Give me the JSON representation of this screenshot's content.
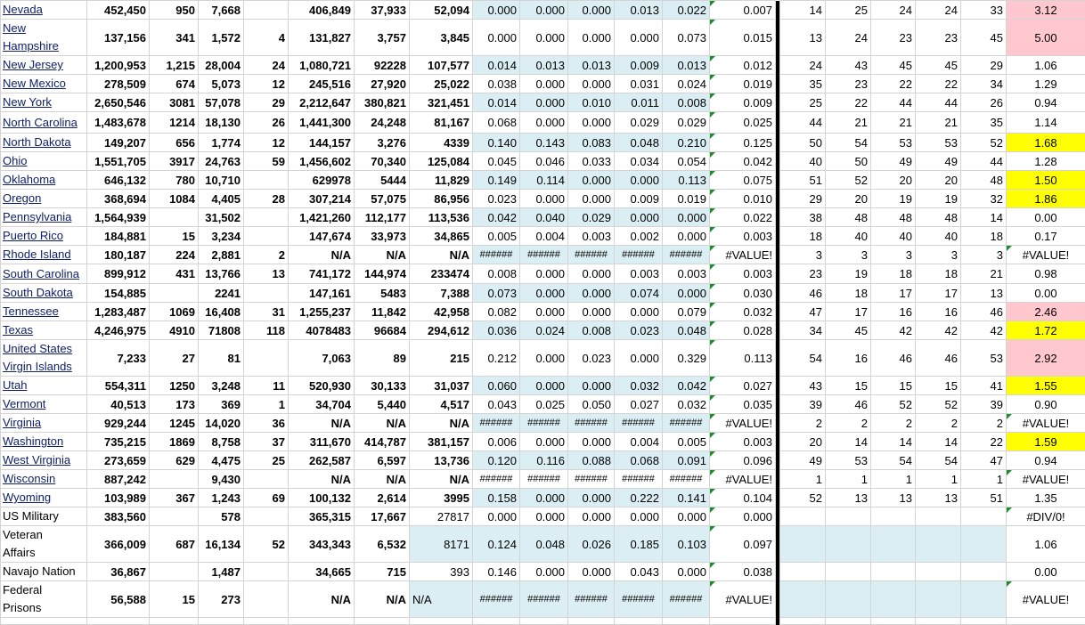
{
  "colors": {
    "shade": "#daeef3",
    "pink": "#ffc7ce",
    "yellow": "#ffff00",
    "separator": "#000000",
    "error_marker": "#1e8c2e"
  },
  "rows": [
    {
      "name": "Nevada",
      "vals": [
        "452,450",
        "950",
        "7,668",
        "",
        "406,849",
        "37,933",
        "52,094"
      ],
      "rates": [
        "0.000",
        "0.000",
        "0.000",
        "0.013",
        "0.022"
      ],
      "avg": "0.007",
      "ranks": [
        "14",
        "25",
        "24",
        "24",
        "33"
      ],
      "ratio": "3.12",
      "fill": "pink"
    },
    {
      "name": "New Hampshire",
      "vals": [
        "137,156",
        "341",
        "1,572",
        "4",
        "131,827",
        "3,757",
        "3,845"
      ],
      "rates": [
        "0.000",
        "0.000",
        "0.000",
        "0.000",
        "0.073"
      ],
      "avg": "0.015",
      "ranks": [
        "13",
        "24",
        "23",
        "23",
        "45"
      ],
      "ratio": "5.00",
      "fill": "pink"
    },
    {
      "name": "New Jersey",
      "vals": [
        "1,200,953",
        "1,215",
        "28,004",
        "24",
        "1,080,721",
        "92228",
        "107,577"
      ],
      "rates": [
        "0.014",
        "0.013",
        "0.013",
        "0.009",
        "0.013"
      ],
      "avg": "0.012",
      "ranks": [
        "24",
        "43",
        "45",
        "45",
        "29"
      ],
      "ratio": "1.06",
      "fill": ""
    },
    {
      "name": "New Mexico",
      "vals": [
        "278,509",
        "674",
        "5,073",
        "12",
        "245,516",
        "27,920",
        "25,022"
      ],
      "rates": [
        "0.038",
        "0.000",
        "0.000",
        "0.031",
        "0.024"
      ],
      "avg": "0.019",
      "ranks": [
        "35",
        "23",
        "22",
        "22",
        "34"
      ],
      "ratio": "1.29",
      "fill": ""
    },
    {
      "name": "New York",
      "vals": [
        "2,650,546",
        "3081",
        "57,078",
        "29",
        "2,212,647",
        "380,821",
        "321,451"
      ],
      "rates": [
        "0.014",
        "0.000",
        "0.010",
        "0.011",
        "0.008"
      ],
      "avg": "0.009",
      "ranks": [
        "25",
        "22",
        "44",
        "44",
        "26"
      ],
      "ratio": "0.94",
      "fill": ""
    },
    {
      "name": "North Carolina",
      "vals": [
        "1,483,678",
        "1214",
        "18,130",
        "26",
        "1,441,300",
        "24,248",
        "81,167"
      ],
      "rates": [
        "0.068",
        "0.000",
        "0.000",
        "0.029",
        "0.029"
      ],
      "avg": "0.025",
      "ranks": [
        "44",
        "21",
        "21",
        "21",
        "35"
      ],
      "ratio": "1.14",
      "fill": ""
    },
    {
      "name": "North Dakota",
      "vals": [
        "149,207",
        "656",
        "1,774",
        "12",
        "144,157",
        "3,276",
        "4339"
      ],
      "rates": [
        "0.140",
        "0.143",
        "0.083",
        "0.048",
        "0.210"
      ],
      "avg": "0.125",
      "ranks": [
        "50",
        "54",
        "53",
        "53",
        "52"
      ],
      "ratio": "1.68",
      "fill": "yellow"
    },
    {
      "name": "Ohio",
      "vals": [
        "1,551,705",
        "3917",
        "24,763",
        "59",
        "1,456,602",
        "70,340",
        "125,084"
      ],
      "rates": [
        "0.045",
        "0.046",
        "0.033",
        "0.034",
        "0.054"
      ],
      "avg": "0.042",
      "ranks": [
        "40",
        "50",
        "49",
        "49",
        "44"
      ],
      "ratio": "1.28",
      "fill": ""
    },
    {
      "name": "Oklahoma",
      "vals": [
        "646,132",
        "780",
        "10,710",
        "",
        "629978",
        "5444",
        "11,829"
      ],
      "rates": [
        "0.149",
        "0.114",
        "0.000",
        "0.000",
        "0.113"
      ],
      "avg": "0.075",
      "ranks": [
        "51",
        "52",
        "20",
        "20",
        "48"
      ],
      "ratio": "1.50",
      "fill": "yellow"
    },
    {
      "name": "Oregon",
      "vals": [
        "368,694",
        "1084",
        "4,405",
        "28",
        "307,214",
        "57,075",
        "86,956"
      ],
      "rates": [
        "0.023",
        "0.000",
        "0.000",
        "0.009",
        "0.019"
      ],
      "avg": "0.010",
      "ranks": [
        "29",
        "20",
        "19",
        "19",
        "32"
      ],
      "ratio": "1.86",
      "fill": "yellow"
    },
    {
      "name": "Pennsylvania",
      "vals": [
        "1,564,939",
        "",
        "31,502",
        "",
        "1,421,260",
        "112,177",
        "113,536"
      ],
      "rates": [
        "0.042",
        "0.040",
        "0.029",
        "0.000",
        "0.000"
      ],
      "avg": "0.022",
      "ranks": [
        "38",
        "48",
        "48",
        "48",
        "14"
      ],
      "ratio": "0.00",
      "fill": ""
    },
    {
      "name": "Puerto Rico",
      "vals": [
        "184,881",
        "15",
        "3,234",
        "",
        "147,674",
        "33,973",
        "34,865"
      ],
      "rates": [
        "0.005",
        "0.004",
        "0.003",
        "0.002",
        "0.000"
      ],
      "avg": "0.003",
      "ranks": [
        "18",
        "40",
        "40",
        "40",
        "18"
      ],
      "ratio": "0.17",
      "fill": ""
    },
    {
      "name": "Rhode Island",
      "vals": [
        "180,187",
        "224",
        "2,881",
        "2",
        "N/A",
        "N/A",
        "N/A"
      ],
      "rates": [
        "######",
        "######",
        "######",
        "######",
        "######"
      ],
      "avg": "#VALUE!",
      "ranks": [
        "3",
        "3",
        "3",
        "3",
        "3"
      ],
      "ratio": "#VALUE!",
      "fill": ""
    },
    {
      "name": "South Carolina",
      "vals": [
        "899,912",
        "431",
        "13,766",
        "13",
        "741,172",
        "144,974",
        "233474"
      ],
      "rates": [
        "0.008",
        "0.000",
        "0.000",
        "0.003",
        "0.003"
      ],
      "avg": "0.003",
      "ranks": [
        "23",
        "19",
        "18",
        "18",
        "21"
      ],
      "ratio": "0.98",
      "fill": ""
    },
    {
      "name": "South Dakota",
      "vals": [
        "154,885",
        "",
        "2241",
        "",
        "147,161",
        "5483",
        "7,388"
      ],
      "rates": [
        "0.073",
        "0.000",
        "0.000",
        "0.074",
        "0.000"
      ],
      "avg": "0.030",
      "ranks": [
        "46",
        "18",
        "17",
        "17",
        "13"
      ],
      "ratio": "0.00",
      "fill": ""
    },
    {
      "name": "Tennessee",
      "vals": [
        "1,283,487",
        "1069",
        "16,408",
        "31",
        "1,255,237",
        "11,842",
        "42,958"
      ],
      "rates": [
        "0.082",
        "0.000",
        "0.000",
        "0.000",
        "0.079"
      ],
      "avg": "0.032",
      "ranks": [
        "47",
        "17",
        "16",
        "16",
        "46"
      ],
      "ratio": "2.46",
      "fill": "pink"
    },
    {
      "name": "Texas",
      "vals": [
        "4,246,975",
        "4910",
        "71808",
        "118",
        "4078483",
        "96684",
        "294,612"
      ],
      "rates": [
        "0.036",
        "0.024",
        "0.008",
        "0.023",
        "0.048"
      ],
      "avg": "0.028",
      "ranks": [
        "34",
        "45",
        "42",
        "42",
        "42"
      ],
      "ratio": "1.72",
      "fill": "yellow"
    },
    {
      "name": "United States Virgin Islands",
      "vals": [
        "7,233",
        "27",
        "81",
        "",
        "7,063",
        "89",
        "215"
      ],
      "rates": [
        "0.212",
        "0.000",
        "0.023",
        "0.000",
        "0.329"
      ],
      "avg": "0.113",
      "ranks": [
        "54",
        "16",
        "46",
        "46",
        "53"
      ],
      "ratio": "2.92",
      "fill": "pink"
    },
    {
      "name": "Utah",
      "vals": [
        "554,311",
        "1250",
        "3,248",
        "11",
        "520,930",
        "30,133",
        "31,037"
      ],
      "rates": [
        "0.060",
        "0.000",
        "0.000",
        "0.032",
        "0.042"
      ],
      "avg": "0.027",
      "ranks": [
        "43",
        "15",
        "15",
        "15",
        "41"
      ],
      "ratio": "1.55",
      "fill": "yellow"
    },
    {
      "name": "Vermont",
      "vals": [
        "40,513",
        "173",
        "369",
        "1",
        "34,704",
        "5,440",
        "4,517"
      ],
      "rates": [
        "0.043",
        "0.025",
        "0.050",
        "0.027",
        "0.032"
      ],
      "avg": "0.035",
      "ranks": [
        "39",
        "46",
        "52",
        "52",
        "39"
      ],
      "ratio": "0.90",
      "fill": ""
    },
    {
      "name": "Virginia",
      "vals": [
        "929,244",
        "1245",
        "14,020",
        "36",
        "N/A",
        "N/A",
        "N/A"
      ],
      "rates": [
        "######",
        "######",
        "######",
        "######",
        "######"
      ],
      "avg": "#VALUE!",
      "ranks": [
        "2",
        "2",
        "2",
        "2",
        "2"
      ],
      "ratio": "#VALUE!",
      "fill": ""
    },
    {
      "name": "Washington",
      "vals": [
        "735,215",
        "1869",
        "8,758",
        "37",
        "311,670",
        "414,787",
        "381,157"
      ],
      "rates": [
        "0.006",
        "0.000",
        "0.000",
        "0.004",
        "0.005"
      ],
      "avg": "0.003",
      "ranks": [
        "20",
        "14",
        "14",
        "14",
        "22"
      ],
      "ratio": "1.59",
      "fill": "yellow"
    },
    {
      "name": "West Virginia",
      "vals": [
        "273,659",
        "629",
        "4,475",
        "25",
        "262,587",
        "6,597",
        "13,736"
      ],
      "rates": [
        "0.120",
        "0.116",
        "0.088",
        "0.068",
        "0.091"
      ],
      "avg": "0.096",
      "ranks": [
        "49",
        "53",
        "54",
        "54",
        "47"
      ],
      "ratio": "0.94",
      "fill": ""
    },
    {
      "name": "Wisconsin",
      "vals": [
        "887,242",
        "",
        "9,430",
        "",
        "N/A",
        "N/A",
        "N/A"
      ],
      "rates": [
        "######",
        "######",
        "######",
        "######",
        "######"
      ],
      "avg": "#VALUE!",
      "ranks": [
        "1",
        "1",
        "1",
        "1",
        "1"
      ],
      "ratio": "#VALUE!",
      "fill": ""
    },
    {
      "name": "Wyoming",
      "vals": [
        "103,989",
        "367",
        "1,243",
        "69",
        "100,132",
        "2,614",
        "3995"
      ],
      "rates": [
        "0.158",
        "0.000",
        "0.000",
        "0.222",
        "0.141"
      ],
      "avg": "0.104",
      "ranks": [
        "52",
        "13",
        "13",
        "13",
        "51"
      ],
      "ratio": "1.35",
      "fill": ""
    },
    {
      "name": "US Military",
      "vals": [
        "383,560",
        "",
        "578",
        "",
        "365,315",
        "17,667",
        "27817"
      ],
      "rates": [
        "0.000",
        "0.000",
        "0.000",
        "0.000",
        "0.000"
      ],
      "avg": "0.000",
      "ranks": [
        "",
        "",
        "",
        "",
        ""
      ],
      "ratio": "#DIV/0!",
      "fill": ""
    },
    {
      "name": "Veteran Affairs",
      "vals": [
        "366,009",
        "687",
        "16,134",
        "52",
        "343,343",
        "6,532",
        "8171"
      ],
      "rates": [
        "0.124",
        "0.048",
        "0.026",
        "0.185",
        "0.103"
      ],
      "avg": "0.097",
      "ranks": [
        "",
        "",
        "",
        "",
        ""
      ],
      "ratio": "1.06",
      "fill": ""
    },
    {
      "name": "Navajo Nation",
      "vals": [
        "36,867",
        "",
        "1,487",
        "",
        "34,665",
        "715",
        "393"
      ],
      "rates": [
        "0.146",
        "0.000",
        "0.000",
        "0.043",
        "0.000"
      ],
      "avg": "0.038",
      "ranks": [
        "",
        "",
        "",
        "",
        ""
      ],
      "ratio": "0.00",
      "fill": ""
    },
    {
      "name": "Federal Prisons",
      "vals": [
        "56,588",
        "15",
        "273",
        "",
        "N/A",
        "N/A",
        "N/A"
      ],
      "rates": [
        "######",
        "######",
        "######",
        "######",
        "######"
      ],
      "avg": "#VALUE!",
      "ranks": [
        "",
        "",
        "",
        "",
        ""
      ],
      "ratio": "#VALUE!",
      "fill": ""
    }
  ]
}
